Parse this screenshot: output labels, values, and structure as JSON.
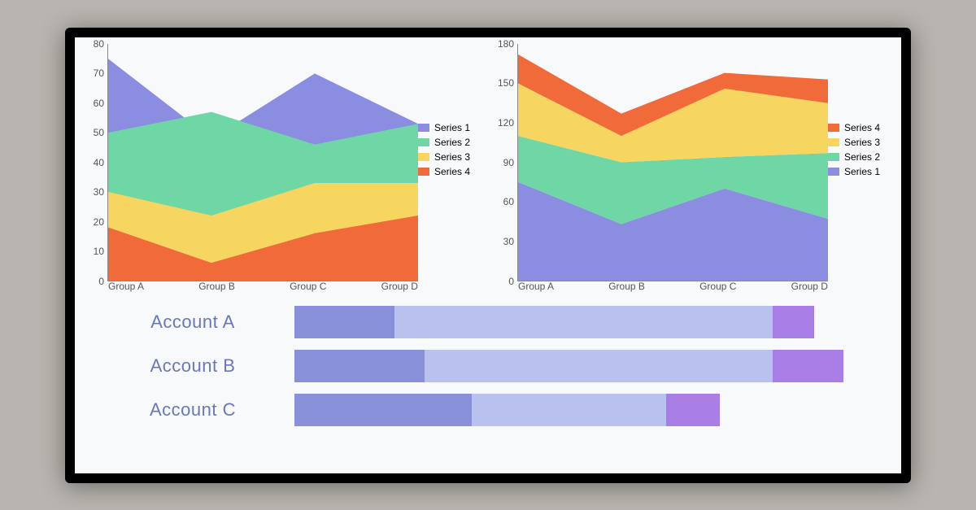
{
  "colors": {
    "series1": "#8a8de0",
    "series2": "#6fd6a6",
    "series3": "#f6d561",
    "series4": "#f06a3a",
    "bar_seg1": "#8790d8",
    "bar_seg2": "#b9c1ee",
    "bar_seg3": "#a87de6",
    "axis_text": "#555555",
    "account_label": "#6a78b8",
    "screen_bg": "#f7f9fb"
  },
  "chart_left": {
    "type": "area",
    "categories": [
      "Group A",
      "Group B",
      "Group C",
      "Group D"
    ],
    "ymin": 0,
    "ymax": 80,
    "ytick_step": 10,
    "yticks": [
      "0",
      "10",
      "20",
      "30",
      "40",
      "50",
      "60",
      "70",
      "80"
    ],
    "series": [
      {
        "name": "Series 1",
        "color_key": "series1",
        "values": [
          75,
          48,
          70,
          53
        ]
      },
      {
        "name": "Series 2",
        "color_key": "series2",
        "values": [
          50,
          57,
          46,
          53
        ]
      },
      {
        "name": "Series 3",
        "color_key": "series3",
        "values": [
          30,
          22,
          33,
          33
        ]
      },
      {
        "name": "Series 4",
        "color_key": "series4",
        "values": [
          18,
          6,
          16,
          22
        ]
      }
    ],
    "legend_order": [
      "Series 1",
      "Series 2",
      "Series 3",
      "Series 4"
    ]
  },
  "chart_right": {
    "type": "stacked-area",
    "categories": [
      "Group A",
      "Group B",
      "Group C",
      "Group D"
    ],
    "ymin": 0,
    "ymax": 180,
    "ytick_step": 30,
    "yticks": [
      "0",
      "30",
      "60",
      "90",
      "120",
      "150",
      "180"
    ],
    "series_stack": [
      {
        "name": "Series 1",
        "color_key": "series1",
        "values": [
          75,
          43,
          70,
          47
        ]
      },
      {
        "name": "Series 2",
        "color_key": "series2",
        "values": [
          35,
          47,
          24,
          50
        ]
      },
      {
        "name": "Series 3",
        "color_key": "series3",
        "values": [
          40,
          20,
          52,
          38
        ]
      },
      {
        "name": "Series 4",
        "color_key": "series4",
        "values": [
          22,
          17,
          12,
          18
        ]
      }
    ],
    "legend_order": [
      "Series 4",
      "Series 3",
      "Series 2",
      "Series 1"
    ]
  },
  "bars": {
    "type": "stacked-horizontal-bar",
    "max": 100,
    "rows": [
      {
        "label": "Account A",
        "segments": [
          17,
          64,
          7
        ]
      },
      {
        "label": "Account B",
        "segments": [
          22,
          59,
          12
        ]
      },
      {
        "label": "Account C",
        "segments": [
          30,
          33,
          9
        ]
      }
    ]
  }
}
